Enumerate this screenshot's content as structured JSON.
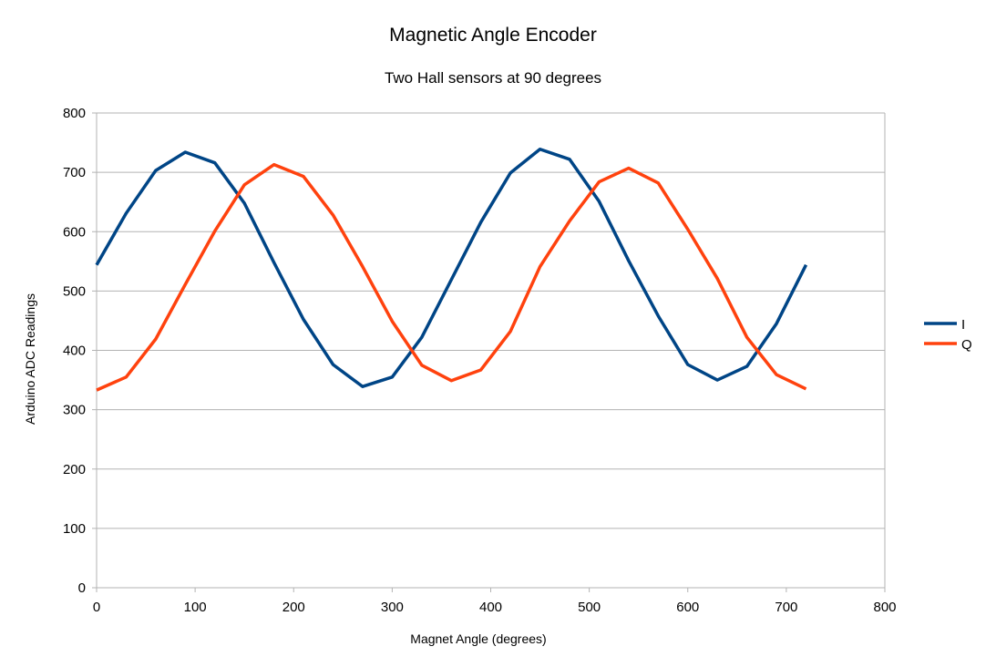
{
  "chart_data": {
    "type": "line",
    "title": "Magnetic Angle Encoder",
    "subtitle": "Two Hall sensors at 90 degrees",
    "xlabel": "Magnet Angle (degrees)",
    "ylabel": "Arduino ADC Readings",
    "xlim": [
      0,
      800
    ],
    "ylim": [
      0,
      800
    ],
    "xticks": [
      0,
      100,
      200,
      300,
      400,
      500,
      600,
      700,
      800
    ],
    "yticks": [
      0,
      100,
      200,
      300,
      400,
      500,
      600,
      700,
      800
    ],
    "grid": "horizontal",
    "legend": "right",
    "x": [
      0,
      30,
      60,
      90,
      120,
      150,
      180,
      210,
      240,
      270,
      300,
      330,
      360,
      390,
      420,
      450,
      480,
      510,
      540,
      570,
      600,
      630,
      660,
      690,
      720
    ],
    "series": [
      {
        "name": "I",
        "color": "#004586",
        "values": [
          544,
          631,
          703,
          734,
          716,
          648,
          548,
          452,
          376,
          339,
          355,
          422,
          519,
          616,
          699,
          739,
          722,
          651,
          551,
          458,
          376,
          350,
          373,
          445,
          544
        ]
      },
      {
        "name": "Q",
        "color": "#ff420e",
        "values": [
          333,
          355,
          419,
          511,
          601,
          679,
          713,
          693,
          628,
          541,
          449,
          375,
          349,
          367,
          432,
          541,
          618,
          684,
          707,
          682,
          604,
          521,
          422,
          359,
          335
        ]
      }
    ]
  }
}
